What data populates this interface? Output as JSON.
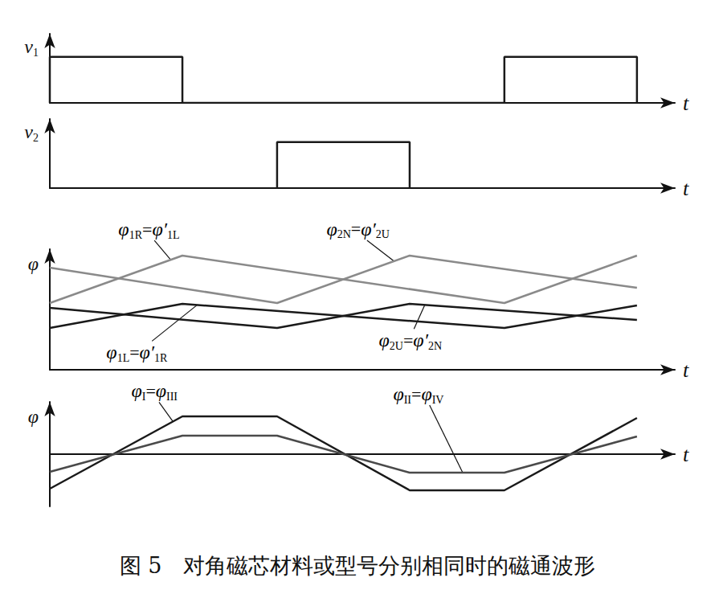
{
  "caption": "图 5　对角磁芯材料或型号分别相同时的磁通波形",
  "chart_data": [
    {
      "type": "line",
      "ylabel": "v1",
      "xlabel": "t",
      "xlim": [
        0,
        16.5
      ],
      "ylim": [
        0,
        1.5
      ],
      "tick_labels": false,
      "grid": false,
      "series": [
        {
          "color": "#1a1a1a",
          "x": [
            0,
            0,
            3.5,
            3.5,
            12,
            12,
            15.5,
            15.5
          ],
          "values": [
            0,
            1,
            1,
            0,
            0,
            1,
            1,
            0
          ]
        }
      ]
    },
    {
      "type": "line",
      "ylabel": "v2",
      "xlabel": "t",
      "xlim": [
        0,
        16.5
      ],
      "ylim": [
        0,
        1.5
      ],
      "tick_labels": false,
      "grid": false,
      "series": [
        {
          "color": "#1a1a1a",
          "x": [
            6,
            6,
            9.5,
            9.5
          ],
          "values": [
            0,
            1,
            1,
            0
          ]
        }
      ]
    },
    {
      "type": "line",
      "ylabel": "φ",
      "xlabel": "t",
      "xlim": [
        0,
        16.5
      ],
      "ylim": [
        0,
        15
      ],
      "tick_labels": false,
      "grid": false,
      "series": [
        {
          "name": "φ1R=φ′1L",
          "color": "#8a8a8a",
          "x": [
            0,
            3.5,
            12,
            15.5
          ],
          "values": [
            8.3,
            14.2,
            8.3,
            14.2
          ],
          "label_at": [
            3.19,
            13.68
          ]
        },
        {
          "name": "φ2N=φ′2U",
          "color": "#8a8a8a",
          "x": [
            0,
            6,
            9.5,
            15.5
          ],
          "values": [
            12.7,
            8.3,
            14.2,
            10.2
          ],
          "label_at": [
            9.09,
            13.51
          ]
        },
        {
          "name": "φ1L=φ′1R",
          "color": "#1a1a1a",
          "x": [
            0,
            3.5,
            12,
            15.5
          ],
          "values": [
            5.2,
            8.2,
            5.2,
            8.0
          ],
          "label_at": [
            3.89,
            8.06
          ]
        },
        {
          "name": "φ2U=φ′2N",
          "color": "#1a1a1a",
          "x": [
            0,
            6,
            9.5,
            15.5
          ],
          "values": [
            7.7,
            5.2,
            8.2,
            6.2
          ],
          "label_at": [
            9.9,
            8.07
          ]
        }
      ]
    },
    {
      "type": "line",
      "ylabel": "φ",
      "xlabel": "t",
      "xlim": [
        0,
        16.5
      ],
      "ylim": [
        -6.5,
        6.5
      ],
      "tick_labels": false,
      "grid": false,
      "series": [
        {
          "name": "φI=φIII",
          "color": "#1a1a1a",
          "x": [
            0,
            3.5,
            6,
            9.5,
            12,
            15.5
          ],
          "values": [
            -4.3,
            4.7,
            4.7,
            -4.5,
            -4.5,
            4.5
          ],
          "label_at": [
            3.25,
            4.06
          ]
        },
        {
          "name": "φII=φIV",
          "color": "#4a4a4a",
          "x": [
            0,
            3.5,
            6,
            9.5,
            12,
            15.5
          ],
          "values": [
            -2.2,
            2.3,
            2.3,
            -2.3,
            -2.3,
            2.2
          ],
          "label_at": [
            10.9,
            -2.3
          ]
        }
      ]
    }
  ]
}
